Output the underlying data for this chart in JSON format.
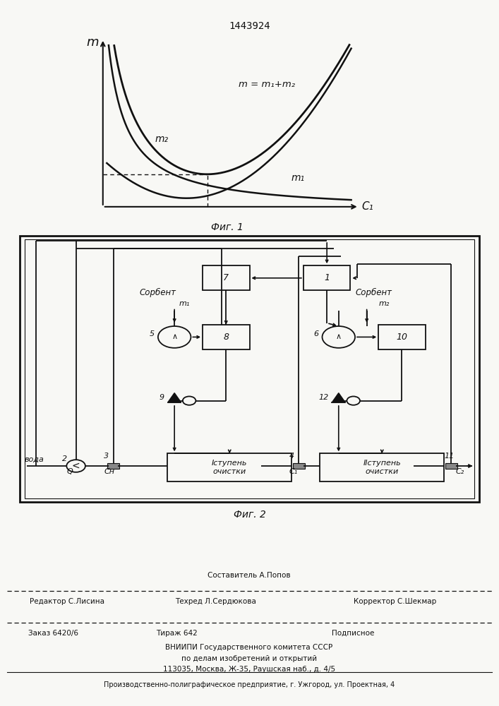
{
  "patent_number": "1443924",
  "fig1_label": "Фиг. 1",
  "fig2_label": "Фиг. 2",
  "curve_label_sum": "m = m₁+m₂",
  "curve_label_m2": "m₂",
  "curve_label_m1": "m₁",
  "axis_m": "m",
  "axis_c1": "C₁",
  "block1_label": "1",
  "block7_label": "7",
  "block8_label": "8",
  "block10_label": "10",
  "block5_label": "5",
  "block6_label": "6",
  "block9_label": "9",
  "block12_label": "12",
  "stage1_label": "Iступень\nочистки",
  "stage2_label": "IIступень\nочистки",
  "sorbent1": "Сорбент",
  "sorbent2": "Сорбент",
  "voda_label": "вода",
  "m1_label": "m₁",
  "m2_label": "m₂",
  "node2": "2",
  "node3": "3",
  "node4": "4",
  "node11": "11",
  "node_Q": "Q",
  "node_Cn": "Cн",
  "node_C1": "C₁",
  "node_C2": "C₂",
  "footer_line1": "Составитель А.Попов",
  "footer_line2_left": "Редактор С.Лисина",
  "footer_line2_mid": "Техред Л.Сердюкова",
  "footer_line2_right": "Корректор С.Шекмар",
  "footer_order": "Заказ 6420/6",
  "footer_tirazh": "Тираж 642",
  "footer_podpisnoe": "Подписное",
  "footer_vnipi": "ВНИИПИ Государственного комитета СССР",
  "footer_po_delam": "по делам изобретений и открытий",
  "footer_address": "113035, Москва, Ж-35, Раушская наб., д. 4/5",
  "footer_proizvod": "Производственно-полиграфическое предприятие, г. Ужгород, ул. Проектная, 4",
  "bg_color": "#f8f8f5",
  "line_color": "#111111"
}
